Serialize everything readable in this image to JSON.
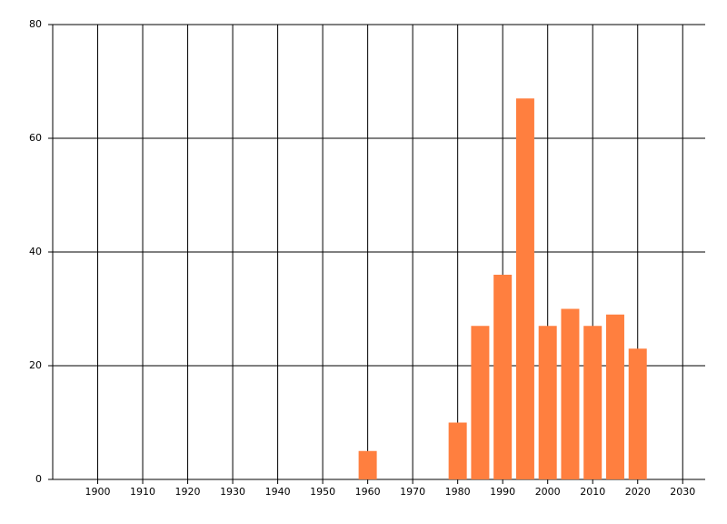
{
  "chart_data": {
    "type": "bar",
    "x": [
      1960,
      1980,
      1985,
      1990,
      1995,
      2000,
      2005,
      2010,
      2015,
      2020
    ],
    "values": [
      5,
      10,
      27,
      36,
      67,
      27,
      30,
      27,
      29,
      23
    ],
    "color": "#ff7f3f",
    "xlim": [
      1890,
      2035
    ],
    "xticks": [
      1900,
      1910,
      1920,
      1930,
      1940,
      1950,
      1960,
      1970,
      1980,
      1990,
      2000,
      2010,
      2020,
      2030
    ],
    "ylim": [
      0,
      80
    ],
    "yticks": [
      0,
      20,
      40,
      60,
      80
    ],
    "grid": true
  }
}
